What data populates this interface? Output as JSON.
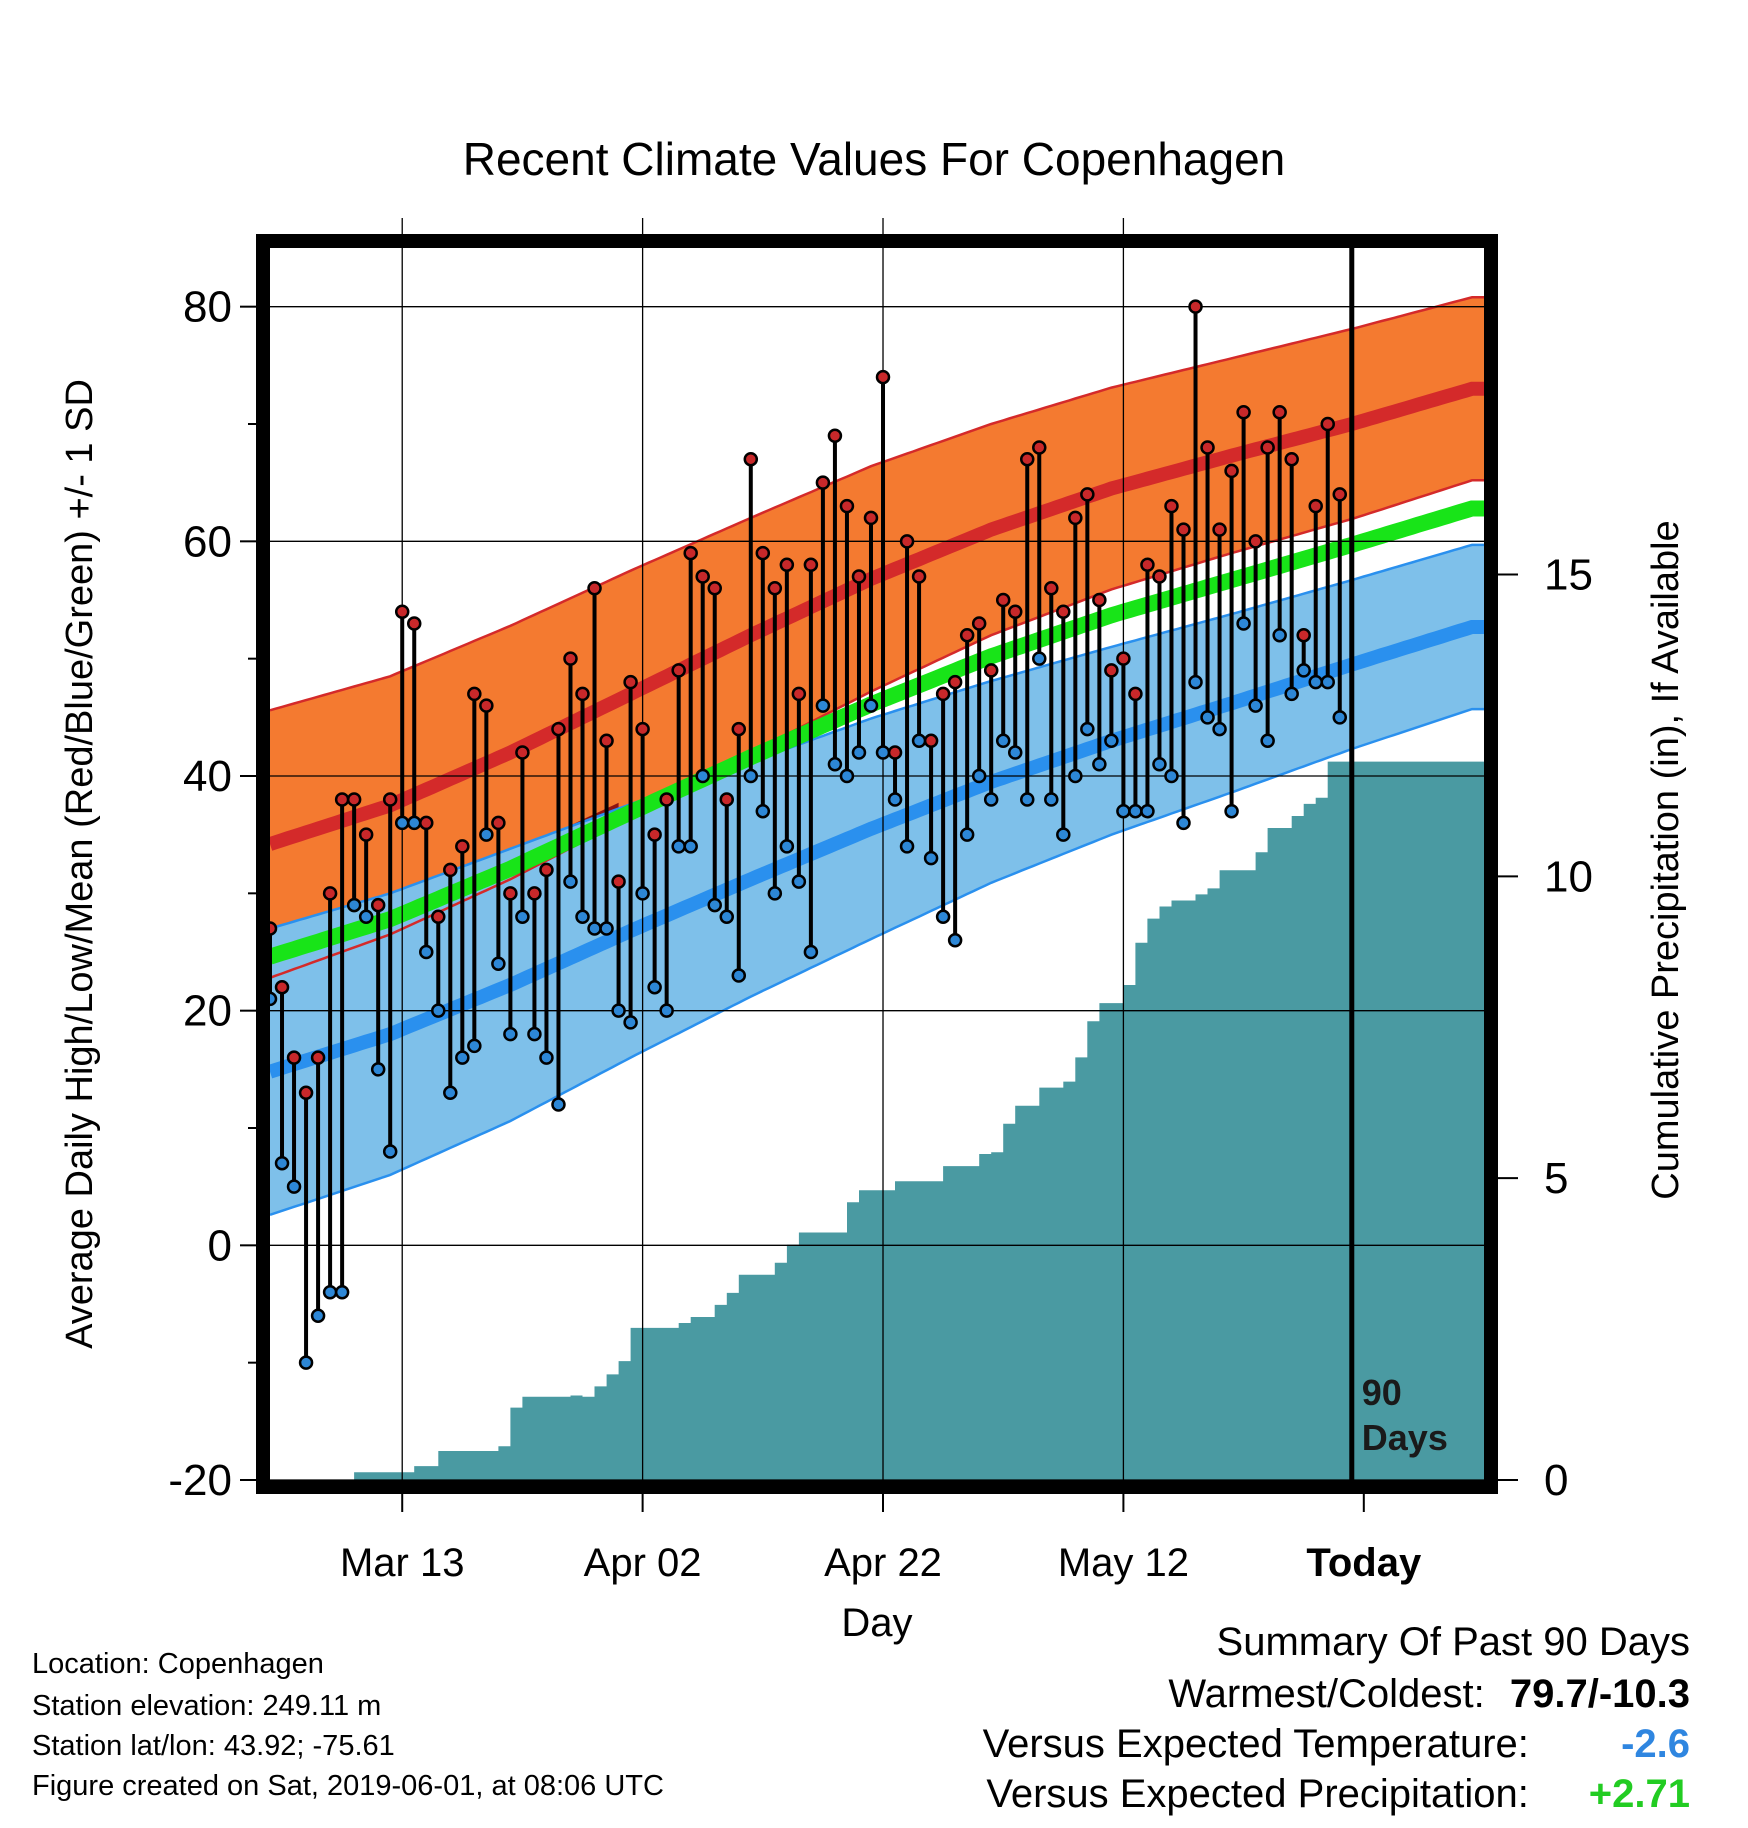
{
  "title": "Recent Climate Values For Copenhagen",
  "chart_data": {
    "type": "line",
    "title": "Recent Climate Values For Copenhagen",
    "xlabel": "Day",
    "ylabel_left": "Average Daily High/Low/Mean (Red/Blue/Green) +/- 1 SD",
    "ylabel_right": "Cumulative Precipitation (in), If Available",
    "xlim": [
      1,
      102
    ],
    "ylim": [
      -20,
      85
    ],
    "ylim_right": [
      0,
      20
    ],
    "grid": true,
    "today_day": 91,
    "today_annotation": "90 Days",
    "x_ticks": [
      {
        "day": 12,
        "label": "Mar 13"
      },
      {
        "day": 32,
        "label": "Apr 02"
      },
      {
        "day": 52,
        "label": "Apr 22"
      },
      {
        "day": 72,
        "label": "May 12"
      },
      {
        "day": 92,
        "label": "Today"
      }
    ],
    "y_ticks": [
      -20,
      0,
      20,
      40,
      60,
      80
    ],
    "y_ticks_right": [
      0,
      5,
      10,
      15
    ],
    "colors": {
      "high_band": "#f47a30",
      "high_mean": "#d42a2a",
      "high_dark": "#8e1212",
      "low_band": "#7ec0ea",
      "low_mean": "#2a90ee",
      "mean_line": "#18e418",
      "precip": "#4a9aa2",
      "high_dot": "#c8282a",
      "low_dot": "#2d87d6"
    },
    "normal_high": [
      [
        1,
        34.2
      ],
      [
        11,
        37.5
      ],
      [
        21,
        42.0
      ],
      [
        31,
        47.0
      ],
      [
        41,
        52.0
      ],
      [
        51,
        56.8
      ],
      [
        61,
        61.0
      ],
      [
        71,
        64.5
      ],
      [
        81,
        67.3
      ],
      [
        91,
        70.0
      ],
      [
        101,
        73.0
      ]
    ],
    "normal_high_sd": [
      [
        1,
        11.4
      ],
      [
        11,
        11.0
      ],
      [
        21,
        10.8
      ],
      [
        31,
        10.5
      ],
      [
        41,
        10.0
      ],
      [
        51,
        9.6
      ],
      [
        61,
        9.0
      ],
      [
        71,
        8.6
      ],
      [
        81,
        8.3
      ],
      [
        91,
        8.1
      ],
      [
        101,
        7.8
      ]
    ],
    "normal_low": [
      [
        1,
        14.8
      ],
      [
        11,
        18.0
      ],
      [
        21,
        22.2
      ],
      [
        31,
        26.8
      ],
      [
        41,
        31.2
      ],
      [
        51,
        35.5
      ],
      [
        61,
        39.5
      ],
      [
        71,
        43.0
      ],
      [
        81,
        46.2
      ],
      [
        91,
        49.5
      ],
      [
        101,
        52.7
      ]
    ],
    "normal_low_sd": [
      [
        1,
        12.2
      ],
      [
        11,
        12.0
      ],
      [
        21,
        11.6
      ],
      [
        31,
        10.8
      ],
      [
        41,
        10.0
      ],
      [
        51,
        9.4
      ],
      [
        61,
        8.6
      ],
      [
        71,
        8.0
      ],
      [
        81,
        7.6
      ],
      [
        91,
        7.2
      ],
      [
        101,
        7.0
      ]
    ],
    "normal_mean": [
      [
        1,
        24.6
      ],
      [
        11,
        27.8
      ],
      [
        21,
        32.1
      ],
      [
        31,
        36.9
      ],
      [
        41,
        41.6
      ],
      [
        51,
        46.1
      ],
      [
        61,
        50.2
      ],
      [
        71,
        53.7
      ],
      [
        81,
        56.7
      ],
      [
        91,
        59.7
      ],
      [
        101,
        62.8
      ]
    ],
    "daily_high": [
      27,
      22,
      16,
      13,
      16,
      30,
      38,
      38,
      35,
      29,
      38,
      54,
      53,
      36,
      28,
      32,
      34,
      47,
      46,
      36,
      30,
      42,
      30,
      32,
      44,
      50,
      47,
      56,
      43,
      31,
      48,
      44,
      35,
      38,
      49,
      59,
      57,
      56,
      38,
      44,
      67,
      59,
      56,
      58,
      47,
      58,
      65,
      69,
      63,
      57,
      62,
      74,
      42,
      60,
      57,
      43,
      47,
      48,
      52,
      53,
      49,
      55,
      54,
      67,
      68,
      56,
      54,
      62,
      64,
      55,
      49,
      50,
      47,
      58,
      57,
      63,
      61,
      80,
      68,
      61,
      66,
      71,
      60,
      68,
      71,
      67,
      52,
      63,
      70,
      64
    ],
    "daily_low": [
      21,
      7,
      5,
      -10,
      -6,
      -4,
      -4,
      29,
      28,
      15,
      8,
      36,
      36,
      25,
      20,
      13,
      16,
      17,
      35,
      24,
      18,
      28,
      18,
      16,
      12,
      31,
      28,
      27,
      27,
      20,
      19,
      30,
      22,
      20,
      34,
      34,
      40,
      29,
      28,
      23,
      40,
      37,
      30,
      34,
      31,
      25,
      46,
      41,
      40,
      42,
      46,
      42,
      38,
      34,
      43,
      33,
      28,
      26,
      35,
      40,
      38,
      43,
      42,
      38,
      50,
      38,
      35,
      40,
      44,
      41,
      43,
      37,
      37,
      37,
      41,
      40,
      36,
      48,
      45,
      44,
      37,
      53,
      46,
      43,
      52,
      47,
      49,
      48,
      48,
      45
    ],
    "cum_precip": [
      [
        1,
        0
      ],
      [
        7,
        0
      ],
      [
        8,
        0.13
      ],
      [
        11,
        0.13
      ],
      [
        13,
        0.23
      ],
      [
        14,
        0.23
      ],
      [
        15,
        0.48
      ],
      [
        19,
        0.48
      ],
      [
        20,
        0.56
      ],
      [
        21,
        1.2
      ],
      [
        22,
        1.38
      ],
      [
        25,
        1.38
      ],
      [
        26,
        1.4
      ],
      [
        27,
        1.38
      ],
      [
        28,
        1.55
      ],
      [
        29,
        1.75
      ],
      [
        30,
        1.97
      ],
      [
        31,
        2.52
      ],
      [
        32,
        2.52
      ],
      [
        34,
        2.52
      ],
      [
        35,
        2.6
      ],
      [
        36,
        2.7
      ],
      [
        37,
        2.7
      ],
      [
        38,
        2.9
      ],
      [
        39,
        3.1
      ],
      [
        40,
        3.4
      ],
      [
        41,
        3.4
      ],
      [
        43,
        3.6
      ],
      [
        44,
        3.9
      ],
      [
        45,
        4.1
      ],
      [
        47,
        4.1
      ],
      [
        48,
        4.1
      ],
      [
        49,
        4.6
      ],
      [
        50,
        4.8
      ],
      [
        52,
        4.8
      ],
      [
        53,
        4.95
      ],
      [
        56,
        4.95
      ],
      [
        57,
        5.2
      ],
      [
        60,
        5.4
      ],
      [
        61,
        5.43
      ],
      [
        62,
        5.9
      ],
      [
        63,
        6.2
      ],
      [
        65,
        6.5
      ],
      [
        66,
        6.5
      ],
      [
        67,
        6.6
      ],
      [
        68,
        7.0
      ],
      [
        69,
        7.6
      ],
      [
        70,
        7.9
      ],
      [
        71,
        7.9
      ],
      [
        72,
        8.2
      ],
      [
        73,
        8.9
      ],
      [
        74,
        9.3
      ],
      [
        75,
        9.5
      ],
      [
        76,
        9.6
      ],
      [
        78,
        9.7
      ],
      [
        79,
        9.8
      ],
      [
        80,
        10.1
      ],
      [
        82,
        10.1
      ],
      [
        83,
        10.4
      ],
      [
        84,
        10.8
      ],
      [
        85,
        10.8
      ],
      [
        86,
        11.0
      ],
      [
        87,
        11.2
      ],
      [
        88,
        11.3
      ],
      [
        89,
        11.9
      ],
      [
        92,
        11.9
      ],
      [
        101,
        11.9
      ]
    ]
  },
  "info": {
    "location": "Location: Copenhagen",
    "elevation": "Station elevation: 249.11 m",
    "latlon": "Station lat/lon: 43.92; -75.61",
    "created": "Figure created on Sat, 2019-06-01, at 08:06 UTC"
  },
  "summary": {
    "heading": "Summary Of Past 90 Days",
    "warmest_label": "Warmest/Coldest:",
    "warmest_value": "79.7/-10.3",
    "temp_label": "Versus Expected Temperature:",
    "temp_value": "-2.6",
    "temp_color": "#2f86e0",
    "precip_label": "Versus Expected Precipitation:",
    "precip_value": "+2.71",
    "precip_color": "#22cc22"
  }
}
